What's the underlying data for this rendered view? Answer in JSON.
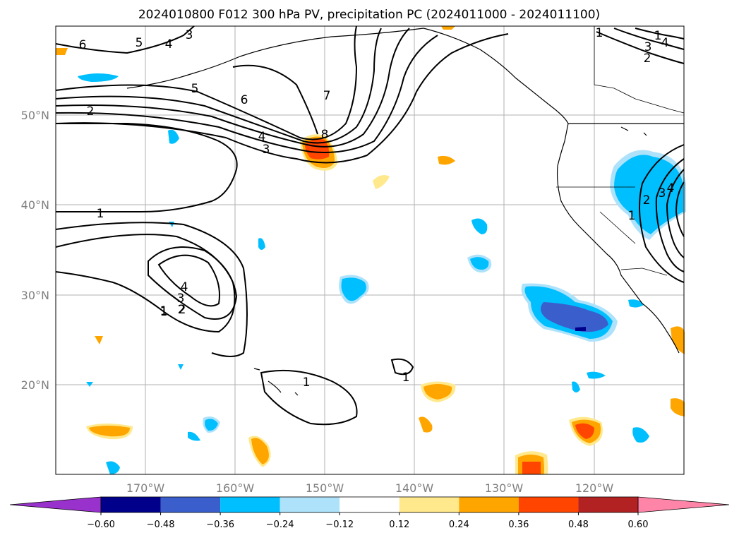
{
  "title": "2024010800 F012 300 hPa PV, precipitation PC (2024011000 - 2024011100)",
  "map": {
    "lon_ticks": [
      "170°W",
      "160°W",
      "150°W",
      "140°W",
      "130°W",
      "120°W"
    ],
    "lat_ticks": [
      "50°N",
      "40°N",
      "30°N",
      "20°N"
    ],
    "grid": true,
    "contour_labels": [
      "6",
      "5",
      "4",
      "3",
      "2",
      "1",
      "5",
      "6",
      "7",
      "8",
      "4",
      "3",
      "2",
      "1",
      "1",
      "4",
      "3",
      "2",
      "1",
      "1",
      "1",
      "1",
      "2",
      "3",
      "4",
      "1",
      "2",
      "3",
      "4"
    ]
  },
  "colorbar": {
    "ticks": [
      "−0.60",
      "−0.48",
      "−0.36",
      "−0.24",
      "−0.12",
      "0.12",
      "0.24",
      "0.36",
      "0.48",
      "0.60"
    ],
    "colors": [
      "#9932cc",
      "#00008b",
      "#3a5fcd",
      "#00bfff",
      "#aee2fb",
      "#ffffff",
      "#ffe98c",
      "#ffa500",
      "#ff4500",
      "#b22222",
      "#ff85a8"
    ]
  }
}
